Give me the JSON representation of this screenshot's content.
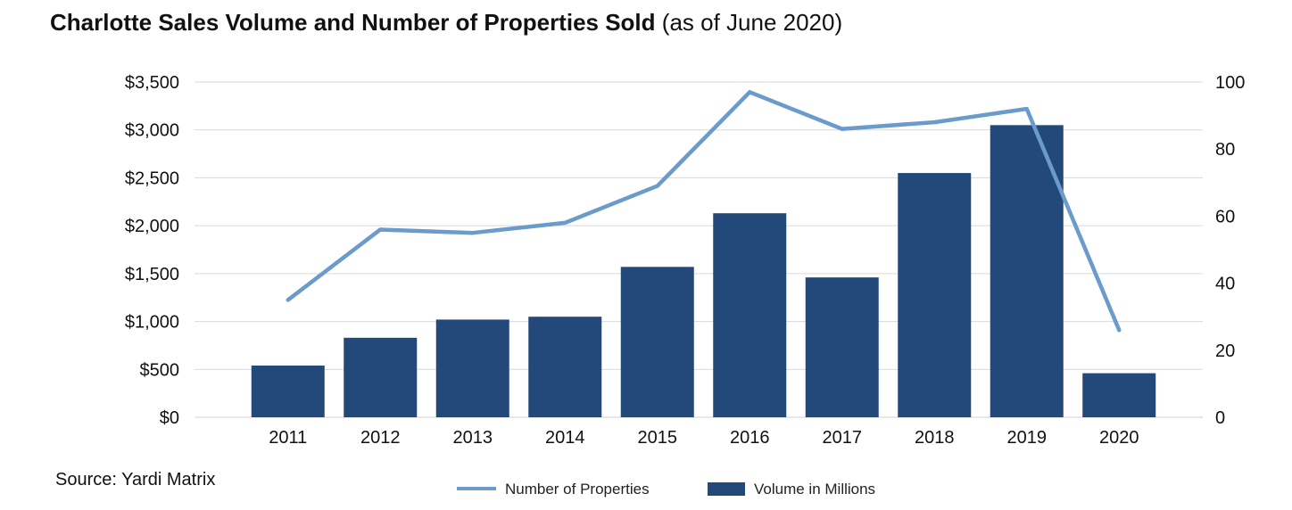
{
  "title": {
    "main": "Charlotte Sales Volume and Number of Properties Sold",
    "sub": "(as of June 2020)"
  },
  "source": "Source: Yardi Matrix",
  "colors": {
    "bar": "#22497A",
    "line": "#6A9BCB",
    "grid": "#D9D9D9"
  },
  "chart_data": {
    "type": "bar",
    "categories": [
      "2011",
      "2012",
      "2013",
      "2014",
      "2015",
      "2016",
      "2017",
      "2018",
      "2019",
      "2020"
    ],
    "series": [
      {
        "name": "Volume in Millions",
        "type": "bar",
        "axis": "left",
        "values": [
          540,
          830,
          1020,
          1050,
          1570,
          2130,
          1460,
          2550,
          3050,
          460
        ]
      },
      {
        "name": "Number of Properties",
        "type": "line",
        "axis": "right",
        "values": [
          35,
          56,
          55,
          58,
          69,
          97,
          86,
          88,
          92,
          26
        ]
      }
    ],
    "y_left": {
      "ylim": [
        0,
        3500
      ],
      "ticks": [
        "$0",
        "$500",
        "$1,000",
        "$1,500",
        "$2,000",
        "$2,500",
        "$3,000",
        "$3,500"
      ],
      "tick_values": [
        0,
        500,
        1000,
        1500,
        2000,
        2500,
        3000,
        3500
      ]
    },
    "y_right": {
      "ylim": [
        0,
        100
      ],
      "ticks": [
        "0",
        "20",
        "40",
        "60",
        "80",
        "100"
      ],
      "tick_values": [
        0,
        20,
        40,
        60,
        80,
        100
      ]
    },
    "grid": true,
    "legend": {
      "position": "bottom",
      "order": [
        "Number of Properties",
        "Volume in Millions"
      ]
    }
  }
}
